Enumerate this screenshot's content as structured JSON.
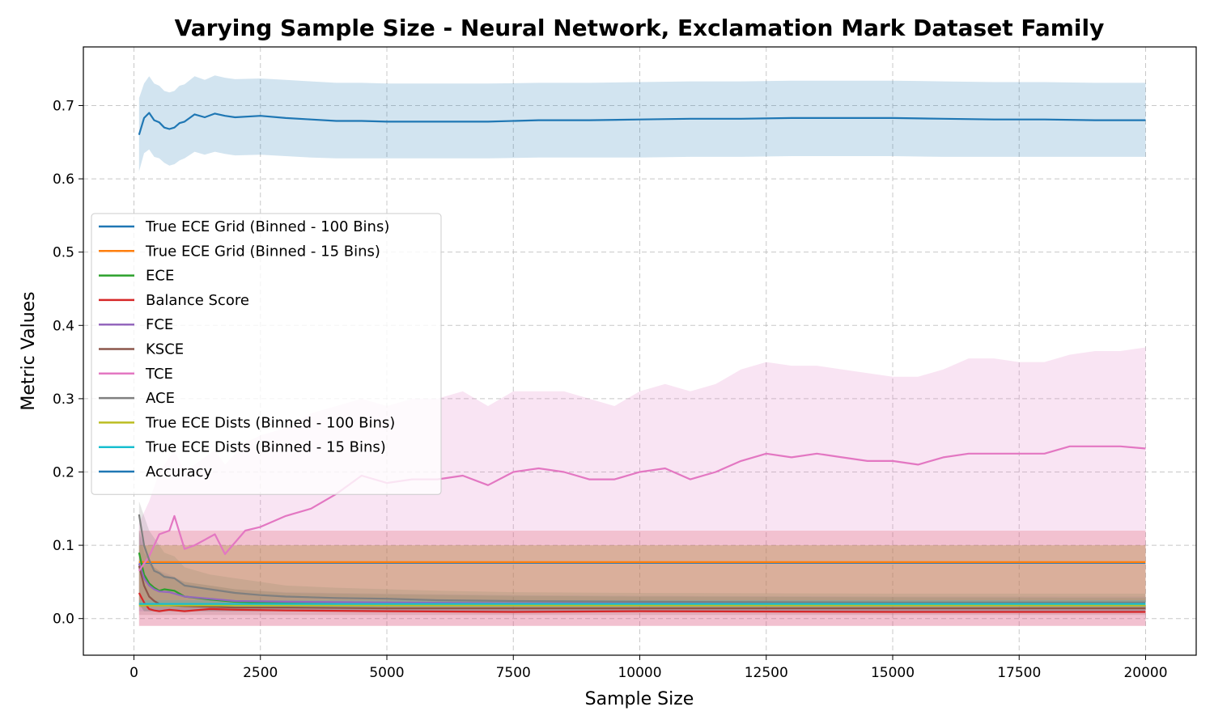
{
  "chart_data": {
    "type": "line",
    "title": "Varying Sample Size - Neural Network, Exclamation Mark Dataset Family",
    "xlabel": "Sample Size",
    "ylabel": "Metric Values",
    "xlim": [
      -1000,
      21000
    ],
    "ylim": [
      -0.05,
      0.78
    ],
    "xticks": [
      0,
      2500,
      5000,
      7500,
      10000,
      12500,
      15000,
      17500,
      20000
    ],
    "yticks": [
      0.0,
      0.1,
      0.2,
      0.3,
      0.4,
      0.5,
      0.6,
      0.7
    ],
    "xtick_labels": [
      "0",
      "2500",
      "5000",
      "7500",
      "10000",
      "12500",
      "15000",
      "17500",
      "20000"
    ],
    "ytick_labels": [
      "0.0",
      "0.1",
      "0.2",
      "0.3",
      "0.4",
      "0.5",
      "0.6",
      "0.7"
    ],
    "grid": true,
    "legend_position": "center-left",
    "series": [
      {
        "name": "True ECE Grid (Binned - 100 Bins)",
        "color": "#1f77b4",
        "x": [
          100,
          20000
        ],
        "y": [
          0.076,
          0.076
        ],
        "band_lower": [
          0.076,
          0.076
        ],
        "band_upper": [
          0.076,
          0.076
        ]
      },
      {
        "name": "True ECE Grid (Binned - 15 Bins)",
        "color": "#ff7f0e",
        "x": [
          100,
          20000
        ],
        "y": [
          0.077,
          0.077
        ],
        "band_lower": [
          0.077,
          0.077
        ],
        "band_upper": [
          0.077,
          0.077
        ]
      },
      {
        "name": "ECE",
        "color": "#2ca02c",
        "x": [
          100,
          200,
          300,
          400,
          500,
          600,
          800,
          1000,
          1500,
          2000,
          3000,
          5000,
          7500,
          10000,
          15000,
          20000
        ],
        "y": [
          0.09,
          0.06,
          0.048,
          0.042,
          0.038,
          0.04,
          0.038,
          0.03,
          0.026,
          0.023,
          0.021,
          0.02,
          0.019,
          0.018,
          0.018,
          0.018
        ],
        "band_lower": [
          0.02,
          0.01,
          0.01,
          0.01,
          0.01,
          0.01,
          0.01,
          0.01,
          0.01,
          0.01,
          0.01,
          0.01,
          0.01,
          0.01,
          0.01,
          0.01
        ],
        "band_upper": [
          0.12,
          0.09,
          0.08,
          0.07,
          0.065,
          0.06,
          0.055,
          0.05,
          0.045,
          0.04,
          0.035,
          0.033,
          0.031,
          0.03,
          0.029,
          0.028
        ]
      },
      {
        "name": "Balance Score",
        "color": "#d62728",
        "x": [
          100,
          200,
          300,
          400,
          500,
          700,
          1000,
          1500,
          2000,
          3000,
          5000,
          7500,
          10000,
          15000,
          20000
        ],
        "y": [
          0.035,
          0.022,
          0.013,
          0.011,
          0.01,
          0.012,
          0.01,
          0.013,
          0.012,
          0.011,
          0.01,
          0.009,
          0.01,
          0.009,
          0.009
        ],
        "band_lower": [
          -0.01,
          -0.01,
          -0.01,
          -0.01,
          -0.01,
          -0.01,
          -0.01,
          -0.01,
          -0.01,
          -0.01,
          -0.01,
          -0.01,
          -0.01,
          -0.01,
          -0.01
        ],
        "band_upper": [
          0.12,
          0.12,
          0.12,
          0.12,
          0.12,
          0.12,
          0.12,
          0.12,
          0.12,
          0.12,
          0.12,
          0.12,
          0.12,
          0.12,
          0.12
        ]
      },
      {
        "name": "FCE",
        "color": "#9467bd",
        "x": [
          100,
          200,
          300,
          400,
          500,
          700,
          1000,
          1500,
          2000,
          3000,
          5000,
          7500,
          10000,
          15000,
          20000
        ],
        "y": [
          0.075,
          0.055,
          0.045,
          0.04,
          0.037,
          0.036,
          0.03,
          0.027,
          0.024,
          0.023,
          0.022,
          0.021,
          0.021,
          0.02,
          0.02
        ],
        "band_lower": [
          0.01,
          0.01,
          0.01,
          0.01,
          0.01,
          0.01,
          0.01,
          0.01,
          0.01,
          0.01,
          0.01,
          0.01,
          0.01,
          0.01,
          0.01
        ],
        "band_upper": [
          0.12,
          0.1,
          0.08,
          0.07,
          0.065,
          0.06,
          0.05,
          0.045,
          0.04,
          0.036,
          0.034,
          0.032,
          0.031,
          0.03,
          0.03
        ]
      },
      {
        "name": "KSCE",
        "color": "#8c564b",
        "x": [
          100,
          200,
          300,
          400,
          500,
          700,
          1000,
          1500,
          2000,
          3000,
          5000,
          7500,
          10000,
          15000,
          20000
        ],
        "y": [
          0.072,
          0.045,
          0.03,
          0.024,
          0.02,
          0.018,
          0.017,
          0.016,
          0.015,
          0.015,
          0.014,
          0.014,
          0.014,
          0.014,
          0.014
        ],
        "band_lower": [
          0.005,
          0.005,
          0.005,
          0.005,
          0.005,
          0.005,
          0.005,
          0.005,
          0.005,
          0.005,
          0.005,
          0.005,
          0.005,
          0.005,
          0.005
        ],
        "band_upper": [
          0.1,
          0.1,
          0.1,
          0.1,
          0.1,
          0.1,
          0.1,
          0.1,
          0.1,
          0.1,
          0.1,
          0.1,
          0.1,
          0.1,
          0.1
        ]
      },
      {
        "name": "TCE",
        "color": "#e377c2",
        "x": [
          100,
          300,
          500,
          700,
          800,
          1000,
          1200,
          1600,
          1800,
          2200,
          2500,
          3000,
          3500,
          4000,
          4500,
          5000,
          5500,
          6000,
          6500,
          7000,
          7500,
          8000,
          8500,
          9000,
          9500,
          10000,
          10500,
          11000,
          11500,
          12000,
          12500,
          13000,
          13500,
          14000,
          14500,
          15000,
          15500,
          16000,
          16500,
          17000,
          17500,
          18000,
          18500,
          19000,
          19500,
          20000
        ],
        "y": [
          0.065,
          0.085,
          0.115,
          0.12,
          0.14,
          0.095,
          0.1,
          0.115,
          0.088,
          0.12,
          0.125,
          0.14,
          0.15,
          0.17,
          0.195,
          0.185,
          0.19,
          0.19,
          0.195,
          0.182,
          0.2,
          0.205,
          0.2,
          0.19,
          0.19,
          0.2,
          0.205,
          0.19,
          0.2,
          0.215,
          0.225,
          0.22,
          0.225,
          0.22,
          0.215,
          0.215,
          0.21,
          0.22,
          0.225,
          0.225,
          0.225,
          0.225,
          0.235,
          0.235,
          0.235,
          0.232
        ],
        "band_lower": [
          -0.01,
          -0.01,
          -0.01,
          -0.01,
          -0.01,
          -0.01,
          -0.01,
          -0.01,
          -0.01,
          -0.01,
          -0.01,
          -0.01,
          -0.01,
          -0.01,
          -0.01,
          -0.01,
          -0.01,
          -0.01,
          -0.01,
          -0.01,
          -0.01,
          -0.01,
          -0.01,
          -0.01,
          -0.01,
          -0.01,
          -0.01,
          -0.01,
          -0.01,
          -0.01,
          -0.01,
          -0.01,
          -0.01,
          -0.01,
          -0.01,
          -0.01,
          -0.01,
          -0.01,
          -0.01,
          -0.01,
          -0.01,
          -0.01,
          -0.01,
          -0.01,
          -0.01,
          -0.01
        ],
        "band_upper": [
          0.13,
          0.16,
          0.2,
          0.22,
          0.23,
          0.2,
          0.21,
          0.23,
          0.21,
          0.24,
          0.25,
          0.26,
          0.28,
          0.29,
          0.3,
          0.29,
          0.3,
          0.3,
          0.31,
          0.29,
          0.31,
          0.31,
          0.31,
          0.3,
          0.29,
          0.31,
          0.32,
          0.31,
          0.32,
          0.34,
          0.35,
          0.345,
          0.345,
          0.34,
          0.335,
          0.33,
          0.33,
          0.34,
          0.355,
          0.355,
          0.35,
          0.35,
          0.36,
          0.365,
          0.365,
          0.37
        ]
      },
      {
        "name": "ACE",
        "color": "#7f7f7f",
        "x": [
          100,
          200,
          300,
          400,
          500,
          600,
          800,
          1000,
          1500,
          2000,
          2500,
          3000,
          4000,
          5000,
          6000,
          7500,
          10000,
          15000,
          20000
        ],
        "y": [
          0.142,
          0.1,
          0.08,
          0.065,
          0.062,
          0.057,
          0.055,
          0.045,
          0.04,
          0.035,
          0.032,
          0.03,
          0.028,
          0.027,
          0.025,
          0.024,
          0.023,
          0.022,
          0.022
        ],
        "band_lower": [
          0.02,
          0.01,
          0.01,
          0.01,
          0.01,
          0.01,
          0.01,
          0.01,
          0.01,
          0.01,
          0.01,
          0.01,
          0.01,
          0.01,
          0.01,
          0.01,
          0.01,
          0.01,
          0.01
        ],
        "band_upper": [
          0.16,
          0.14,
          0.12,
          0.11,
          0.1,
          0.09,
          0.085,
          0.07,
          0.06,
          0.055,
          0.05,
          0.045,
          0.042,
          0.04,
          0.038,
          0.036,
          0.035,
          0.034,
          0.034
        ]
      },
      {
        "name": "True ECE Dists (Binned - 100 Bins)",
        "color": "#bcbd22",
        "x": [
          100,
          2000,
          5000,
          10000,
          15000,
          20000
        ],
        "y": [
          0.018,
          0.018,
          0.018,
          0.018,
          0.018,
          0.018
        ],
        "band_lower": [
          0.015,
          0.015,
          0.015,
          0.015,
          0.015,
          0.015
        ],
        "band_upper": [
          0.1,
          0.1,
          0.1,
          0.1,
          0.1,
          0.1
        ]
      },
      {
        "name": "True ECE Dists (Binned - 15 Bins)",
        "color": "#17becf",
        "x": [
          100,
          20000
        ],
        "y": [
          0.02,
          0.02
        ],
        "band_lower": [
          0.016,
          0.016
        ],
        "band_upper": [
          0.025,
          0.025
        ]
      },
      {
        "name": "Accuracy",
        "color": "#1f77b4",
        "x": [
          100,
          200,
          300,
          400,
          500,
          600,
          700,
          800,
          900,
          1000,
          1200,
          1400,
          1600,
          1800,
          2000,
          2500,
          3000,
          3500,
          4000,
          4500,
          5000,
          6000,
          7000,
          8000,
          9000,
          10000,
          11000,
          12000,
          13000,
          14000,
          15000,
          16000,
          17000,
          18000,
          19000,
          20000
        ],
        "y": [
          0.66,
          0.683,
          0.69,
          0.68,
          0.677,
          0.67,
          0.668,
          0.67,
          0.676,
          0.678,
          0.688,
          0.684,
          0.689,
          0.686,
          0.684,
          0.686,
          0.683,
          0.681,
          0.679,
          0.679,
          0.678,
          0.678,
          0.678,
          0.68,
          0.68,
          0.681,
          0.682,
          0.682,
          0.683,
          0.683,
          0.683,
          0.682,
          0.681,
          0.681,
          0.68,
          0.68
        ],
        "band_lower": [
          0.61,
          0.635,
          0.64,
          0.63,
          0.628,
          0.622,
          0.618,
          0.62,
          0.625,
          0.628,
          0.637,
          0.633,
          0.637,
          0.634,
          0.632,
          0.633,
          0.631,
          0.629,
          0.628,
          0.628,
          0.628,
          0.628,
          0.628,
          0.629,
          0.629,
          0.629,
          0.63,
          0.63,
          0.631,
          0.631,
          0.631,
          0.63,
          0.63,
          0.63,
          0.63,
          0.63
        ],
        "band_upper": [
          0.71,
          0.73,
          0.74,
          0.73,
          0.727,
          0.72,
          0.718,
          0.72,
          0.727,
          0.729,
          0.74,
          0.735,
          0.741,
          0.738,
          0.736,
          0.737,
          0.735,
          0.733,
          0.731,
          0.731,
          0.73,
          0.73,
          0.73,
          0.731,
          0.731,
          0.732,
          0.733,
          0.733,
          0.734,
          0.734,
          0.734,
          0.733,
          0.732,
          0.732,
          0.731,
          0.731
        ]
      }
    ]
  }
}
